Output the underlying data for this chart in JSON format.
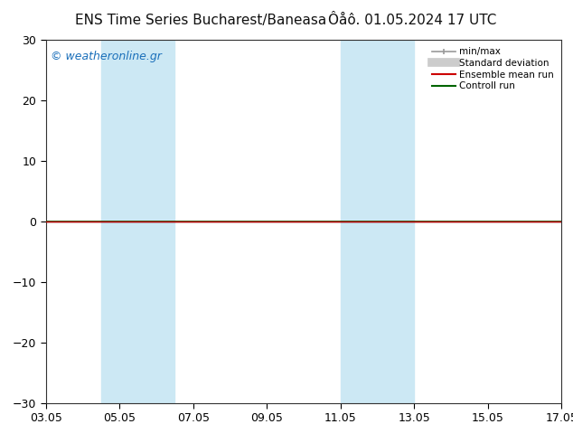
{
  "title_left": "ENS Time Series Bucharest/Baneasa",
  "title_right": "Ôåô. 01.05.2024 17 UTC",
  "watermark": "© weatheronline.gr",
  "ylim": [
    -30,
    30
  ],
  "yticks": [
    -30,
    -20,
    -10,
    0,
    10,
    20,
    30
  ],
  "xlim_min": 0,
  "xlim_max": 336,
  "xtick_positions": [
    0,
    48,
    96,
    144,
    192,
    240,
    288,
    336
  ],
  "xtick_labels": [
    "03.05",
    "05.05",
    "07.05",
    "09.05",
    "11.05",
    "13.05",
    "15.05",
    "17.05"
  ],
  "shaded_bands": [
    {
      "xmin": 36,
      "xmax": 84
    },
    {
      "xmin": 192,
      "xmax": 240
    }
  ],
  "shade_color": "#cce8f4",
  "control_run_color": "#006400",
  "ensemble_mean_color": "#cc0000",
  "minmax_color": "#999999",
  "stddev_color": "#cccccc",
  "zero_line_color": "#111111",
  "background_color": "#ffffff",
  "plot_bg_color": "#ffffff",
  "legend_items": [
    {
      "label": "min/max",
      "color": "#999999",
      "lw": 1.2
    },
    {
      "label": "Standard deviation",
      "color": "#cccccc",
      "lw": 6
    },
    {
      "label": "Ensemble mean run",
      "color": "#cc0000",
      "lw": 1.5
    },
    {
      "label": "Controll run",
      "color": "#006400",
      "lw": 1.5
    }
  ],
  "title_fontsize": 11,
  "watermark_fontsize": 9,
  "legend_fontsize": 7.5,
  "tick_fontsize": 9
}
